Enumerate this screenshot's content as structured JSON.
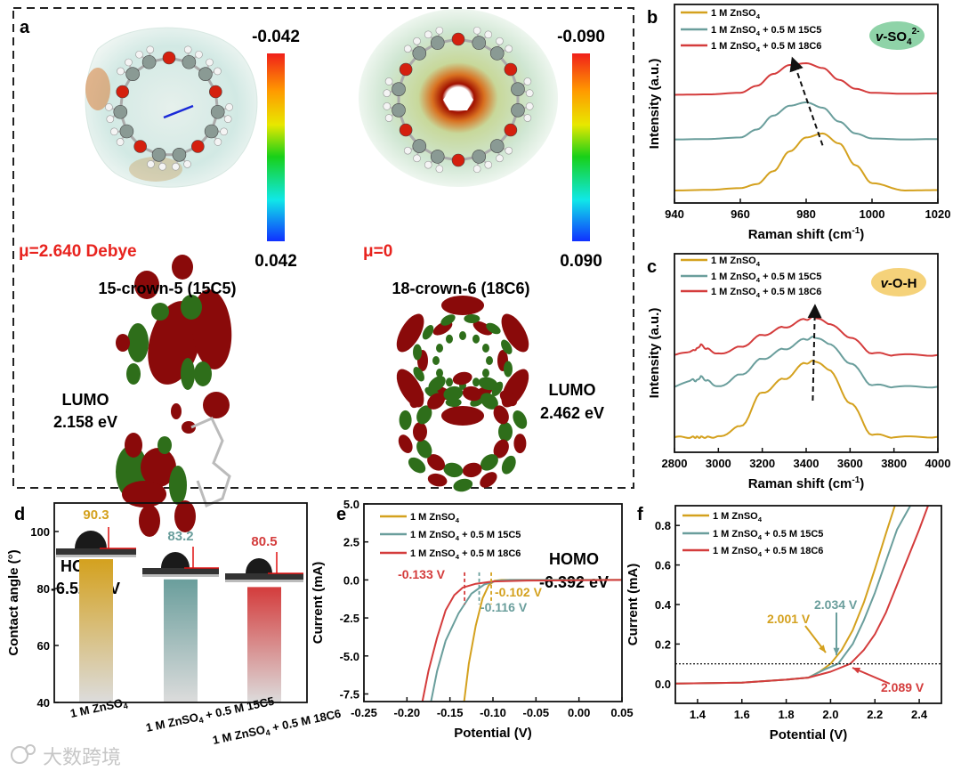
{
  "panel_letters": {
    "a": "a",
    "b": "b",
    "c": "c",
    "d": "d",
    "e": "e",
    "f": "f"
  },
  "colors": {
    "znso4": "#D4A11E",
    "c15": "#6A9E9C",
    "c18": "#D43C3C",
    "badge_so4": "#8FD3A8",
    "badge_oh": "#F5D27A",
    "mu": "#E8231E"
  },
  "legend": [
    {
      "pre": "1 M ZnSO",
      "sub": "4",
      "post": ""
    },
    {
      "pre": "1 M ZnSO",
      "sub": "4",
      "post": " + 0.5 M 15C5"
    },
    {
      "pre": "1 M ZnSO",
      "sub": "4",
      "post": " + 0.5 M 18C6"
    }
  ],
  "panel_a": {
    "left": {
      "name": "15-crown-5 (15C5)",
      "dipole": "μ=2.640 Debye",
      "colorbar_max": "-0.042",
      "colorbar_min": "0.042",
      "lumo_label": "LUMO",
      "lumo_value": "2.158 eV",
      "homo_label": "HOMO",
      "homo_value": "-6.522 eV"
    },
    "right": {
      "name": "18-crown-6 (18C6)",
      "dipole": "μ=0",
      "colorbar_max": "-0.090",
      "colorbar_min": "0.090",
      "lumo_label": "LUMO",
      "lumo_value": "2.462 eV",
      "homo_label": "HOMO",
      "homo_value": "-6.392 eV"
    }
  },
  "badges": {
    "so4": {
      "v": "v",
      "main": "-SO",
      "sub": "4",
      "sup": "2-"
    },
    "oh": {
      "v": "v",
      "main": "-O-H"
    }
  },
  "watermark": "大数跨境",
  "chart_data": [
    {
      "panel": "b",
      "type": "line",
      "xlabel": "Raman shift (cm",
      "xlabel_sup": "-1",
      "xlabel_end": ")",
      "ylabel": "Intensity (a.u.)",
      "xlim": [
        940,
        1020
      ],
      "ylim": [
        0,
        10
      ],
      "xticks": [
        "940",
        "960",
        "980",
        "1000",
        "1020"
      ],
      "x": [
        940,
        950,
        960,
        965,
        970,
        975,
        980,
        985,
        990,
        995,
        1000,
        1010,
        1020
      ],
      "series": [
        {
          "name": "1 M ZnSO4",
          "values": [
            0.63,
            0.66,
            0.75,
            0.95,
            1.6,
            2.6,
            3.3,
            3.5,
            3.0,
            1.9,
            1.0,
            0.63,
            0.65
          ]
        },
        {
          "name": "1 M ZnSO4 + 0.5 M 15C5",
          "values": [
            3.2,
            3.22,
            3.3,
            3.7,
            4.4,
            4.9,
            5.07,
            4.8,
            4.1,
            3.5,
            3.25,
            3.2,
            3.22
          ]
        },
        {
          "name": "1 M ZnSO4 + 0.5 M 18C6",
          "values": [
            5.45,
            5.47,
            5.55,
            5.9,
            6.5,
            6.95,
            7.04,
            6.8,
            6.2,
            5.75,
            5.55,
            5.5,
            5.52
          ]
        }
      ],
      "arrow": {
        "from": [
          985,
          2.9
        ],
        "to": [
          976,
          7.2
        ]
      }
    },
    {
      "panel": "c",
      "type": "line",
      "xlabel": "Raman shift (cm",
      "xlabel_sup": "-1",
      "xlabel_end": ")",
      "ylabel": "Intensity (a.u.)",
      "xlim": [
        2800,
        4000
      ],
      "ylim": [
        0,
        10
      ],
      "xticks": [
        "2800",
        "3000",
        "3200",
        "3400",
        "3600",
        "3800",
        "4000"
      ],
      "x": [
        2800,
        2880,
        2900,
        2920,
        2950,
        3000,
        3100,
        3200,
        3300,
        3400,
        3440,
        3500,
        3600,
        3700,
        3800,
        4000
      ],
      "series": [
        {
          "name": "1 M ZnSO4",
          "values": [
            0.76,
            0.76,
            0.76,
            0.76,
            0.76,
            0.78,
            1.3,
            3.0,
            3.7,
            4.5,
            4.6,
            4.2,
            2.5,
            0.9,
            0.76,
            0.78
          ]
        },
        {
          "name": "1 M ZnSO4 + 0.5 M 15C5",
          "values": [
            3.3,
            3.65,
            3.6,
            3.8,
            3.6,
            3.3,
            3.9,
            4.7,
            5.2,
            5.7,
            5.8,
            5.5,
            4.5,
            3.4,
            3.3,
            3.3
          ]
        },
        {
          "name": "1 M ZnSO4 + 0.5 M 18C6",
          "values": [
            4.9,
            5.1,
            5.2,
            5.4,
            5.2,
            4.95,
            5.3,
            5.9,
            6.3,
            6.7,
            6.8,
            6.5,
            5.8,
            5.0,
            4.9,
            4.9
          ]
        }
      ],
      "arrow": {
        "from": [
          3430,
          2.6
        ],
        "to": [
          3440,
          7.3
        ]
      }
    },
    {
      "panel": "d",
      "type": "bar",
      "ylabel": "Contact angle (°)",
      "ylim": [
        40,
        110
      ],
      "yticks": [
        "40",
        "60",
        "80",
        "100"
      ],
      "categories": [
        {
          "pre": "1 M ZnSO",
          "sub": "4",
          "post": ""
        },
        {
          "pre": "1 M ZnSO",
          "sub": "4",
          "post": " + 0.5 M 15C5"
        },
        {
          "pre": "1 M ZnSO",
          "sub": "4",
          "post": " + 0.5 M 18C6"
        }
      ],
      "values": [
        90.3,
        83.2,
        80.5
      ],
      "value_labels": [
        "90.3",
        "83.2",
        "80.5"
      ]
    },
    {
      "panel": "e",
      "type": "line",
      "xlabel": "Potential (V)",
      "ylabel": "Current (mA)",
      "xlim": [
        -0.25,
        0.05
      ],
      "ylim": [
        -8,
        5
      ],
      "xticks": [
        "-0.25",
        "-0.20",
        "-0.15",
        "-0.10",
        "-0.05",
        "0.00",
        "0.05"
      ],
      "yticks": [
        "-7.5",
        "-5.0",
        "-2.5",
        "0.0",
        "2.5",
        "5.0"
      ],
      "series": [
        {
          "name": "1 M ZnSO4",
          "points": [
            [
              -0.1335,
              -8
            ],
            [
              -0.128,
              -5.5
            ],
            [
              -0.12,
              -3
            ],
            [
              -0.112,
              -1.2
            ],
            [
              -0.105,
              -0.35
            ],
            [
              -0.098,
              -0.05
            ],
            [
              -0.09,
              0
            ],
            [
              0.05,
              0
            ]
          ]
        },
        {
          "name": "1 M ZnSO4 + 0.5 M 15C5",
          "points": [
            [
              -0.172,
              -8
            ],
            [
              -0.165,
              -6
            ],
            [
              -0.155,
              -4
            ],
            [
              -0.14,
              -2.2
            ],
            [
              -0.125,
              -0.9
            ],
            [
              -0.11,
              -0.3
            ],
            [
              -0.095,
              -0.05
            ],
            [
              -0.08,
              0
            ],
            [
              0.05,
              0
            ]
          ]
        },
        {
          "name": "1 M ZnSO4 + 0.5 M 18C6",
          "points": [
            [
              -0.182,
              -8
            ],
            [
              -0.175,
              -6
            ],
            [
              -0.165,
              -3.8
            ],
            [
              -0.155,
              -2.0
            ],
            [
              -0.145,
              -1.0
            ],
            [
              -0.135,
              -0.5
            ],
            [
              -0.12,
              -0.25
            ],
            [
              -0.1,
              -0.1
            ],
            [
              -0.06,
              -0.04
            ],
            [
              0.05,
              0
            ]
          ]
        }
      ],
      "onsets": [
        {
          "series": 0,
          "x": -0.102,
          "label": "-0.102 V"
        },
        {
          "series": 1,
          "x": -0.116,
          "label": "-0.116 V"
        },
        {
          "series": 2,
          "x": -0.133,
          "label": "-0.133 V"
        }
      ]
    },
    {
      "panel": "f",
      "type": "line",
      "xlabel": "Potential (V)",
      "ylabel": "Current (mA)",
      "xlim": [
        1.3,
        2.5
      ],
      "ylim": [
        -0.1,
        0.9
      ],
      "xticks": [
        "1.4",
        "1.6",
        "1.8",
        "2.0",
        "2.2",
        "2.4"
      ],
      "yticks": [
        "0.0",
        "0.2",
        "0.4",
        "0.6",
        "0.8"
      ],
      "threshold": 0.1,
      "series": [
        {
          "name": "1 M ZnSO4",
          "points": [
            [
              1.3,
              0
            ],
            [
              1.6,
              0.005
            ],
            [
              1.8,
              0.02
            ],
            [
              1.9,
              0.03
            ],
            [
              1.95,
              0.06
            ],
            [
              2.0,
              0.1
            ],
            [
              2.05,
              0.17
            ],
            [
              2.1,
              0.27
            ],
            [
              2.15,
              0.41
            ],
            [
              2.2,
              0.58
            ],
            [
              2.25,
              0.76
            ],
            [
              2.29,
              0.9
            ]
          ]
        },
        {
          "name": "1 M ZnSO4 + 0.5 M 15C5",
          "points": [
            [
              1.3,
              0
            ],
            [
              1.6,
              0.005
            ],
            [
              1.8,
              0.02
            ],
            [
              1.9,
              0.03
            ],
            [
              1.97,
              0.07
            ],
            [
              2.034,
              0.1
            ],
            [
              2.1,
              0.2
            ],
            [
              2.15,
              0.32
            ],
            [
              2.2,
              0.46
            ],
            [
              2.25,
              0.62
            ],
            [
              2.3,
              0.78
            ],
            [
              2.36,
              0.9
            ]
          ]
        },
        {
          "name": "1 M ZnSO4 + 0.5 M 18C6",
          "points": [
            [
              1.3,
              0
            ],
            [
              1.6,
              0.005
            ],
            [
              1.8,
              0.02
            ],
            [
              1.9,
              0.03
            ],
            [
              2.0,
              0.06
            ],
            [
              2.089,
              0.1
            ],
            [
              2.15,
              0.17
            ],
            [
              2.2,
              0.25
            ],
            [
              2.25,
              0.36
            ],
            [
              2.3,
              0.5
            ],
            [
              2.35,
              0.64
            ],
            [
              2.4,
              0.78
            ],
            [
              2.44,
              0.9
            ]
          ]
        }
      ],
      "onsets": [
        {
          "series": 0,
          "x": 2.001,
          "label": "2.001 V"
        },
        {
          "series": 1,
          "x": 2.034,
          "label": "2.034 V"
        },
        {
          "series": 2,
          "x": 2.089,
          "label": "2.089 V"
        }
      ]
    }
  ]
}
